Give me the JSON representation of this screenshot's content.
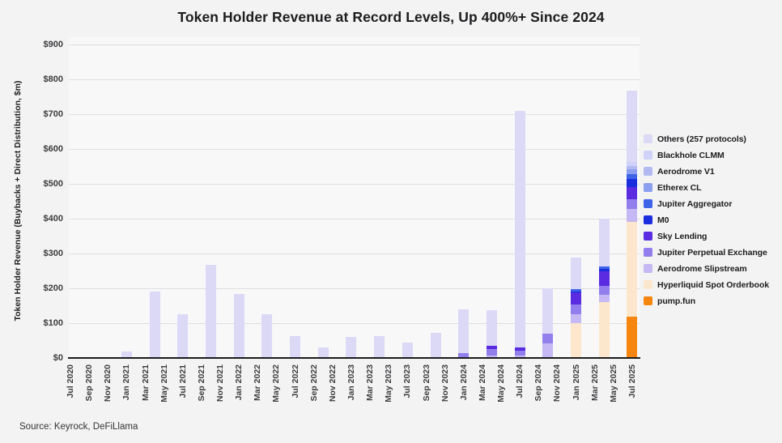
{
  "source_note": "Source: Keyrock, DeFiLlama",
  "chart_data": {
    "type": "bar",
    "stacked": true,
    "title": "Token Holder Revenue at Record Levels, Up 400%+ Since 2024",
    "xlabel": "",
    "ylabel": "Token Holder Revenue (Buybacks + Direct Distribution, $m)",
    "ylim": [
      0,
      900
    ],
    "grid": "horizontal",
    "legend_position": "right",
    "y_tick_labels": [
      "$0",
      "$100",
      "$200",
      "$300",
      "$400",
      "$500",
      "$600",
      "$700",
      "$800",
      "$900"
    ],
    "x_tick_labels": [
      "Jul 2020",
      "Sep 2020",
      "Nov 2020",
      "Jan 2021",
      "Mar 2021",
      "May 2021",
      "Jul 2021",
      "Sep 2021",
      "Nov 2021",
      "Jan 2022",
      "Mar 2022",
      "May 2022",
      "Jul 2022",
      "Sep 2022",
      "Nov 2022",
      "Jan 2023",
      "Mar 2023",
      "May 2023",
      "Jul 2023",
      "Sep 2023",
      "Nov 2023",
      "Jan 2024",
      "Mar 2024",
      "May 2024",
      "Jul 2024",
      "Sep 2024",
      "Nov 2024",
      "Jan 2025",
      "Mar 2025",
      "May 2025",
      "Jul 2025"
    ],
    "series_order_bottom_to_top": [
      "pump_fun",
      "hyperliquid",
      "slipstream",
      "jupiter_perp",
      "sky",
      "m0",
      "jupiter_agg",
      "etherex",
      "aerodrome_v1",
      "blackhole",
      "others"
    ],
    "legend_order_top_to_bottom": [
      "others",
      "blackhole",
      "aerodrome_v1",
      "etherex",
      "jupiter_agg",
      "m0",
      "sky",
      "jupiter_perp",
      "slipstream",
      "hyperliquid",
      "pump_fun"
    ],
    "series_meta": {
      "others": {
        "label": "Others (257 protocols)",
        "color": "#dbd9f6"
      },
      "blackhole": {
        "label": "Blackhole CLMM",
        "color": "#cfd2f9"
      },
      "aerodrome_v1": {
        "label": "Aerodrome V1",
        "color": "#b3baf3"
      },
      "etherex": {
        "label": "Etherex CL",
        "color": "#8c9fee"
      },
      "jupiter_agg": {
        "label": "Jupiter Aggregator",
        "color": "#3d64e7"
      },
      "m0": {
        "label": "M0",
        "color": "#1a2ede"
      },
      "sky": {
        "label": "Sky Lending",
        "color": "#5a2be0"
      },
      "jupiter_perp": {
        "label": "Jupiter Perpetual Exchange",
        "color": "#927eec"
      },
      "slipstream": {
        "label": "Aerodrome Slipstream",
        "color": "#c5b8f4"
      },
      "hyperliquid": {
        "label": "Hyperliquid Spot Orderbook",
        "color": "#fde7cc"
      },
      "pump_fun": {
        "label": "pump.fun",
        "color": "#f6860f"
      }
    },
    "bars": [
      {
        "label": "Jan 2021",
        "month": 6,
        "total": 18,
        "values": {
          "others": 18
        }
      },
      {
        "label": "Apr 2021",
        "month": 9,
        "total": 192,
        "values": {
          "others": 192
        }
      },
      {
        "label": "Jul 2021",
        "month": 12,
        "total": 126,
        "values": {
          "others": 126
        }
      },
      {
        "label": "Oct 2021",
        "month": 15,
        "total": 267,
        "values": {
          "others": 267
        }
      },
      {
        "label": "Jan 2022",
        "month": 18,
        "total": 185,
        "values": {
          "others": 185
        }
      },
      {
        "label": "Apr 2022",
        "month": 21,
        "total": 126,
        "values": {
          "others": 126
        }
      },
      {
        "label": "Jul 2022",
        "month": 24,
        "total": 64,
        "values": {
          "others": 64
        }
      },
      {
        "label": "Oct 2022",
        "month": 27,
        "total": 30,
        "values": {
          "others": 30
        }
      },
      {
        "label": "Jan 2023",
        "month": 30,
        "total": 60,
        "values": {
          "others": 60
        }
      },
      {
        "label": "Apr 2023",
        "month": 33,
        "total": 63,
        "values": {
          "others": 63
        }
      },
      {
        "label": "Jul 2023",
        "month": 36,
        "total": 45,
        "values": {
          "others": 45
        }
      },
      {
        "label": "Oct 2023",
        "month": 39,
        "total": 72,
        "values": {
          "others": 72
        }
      },
      {
        "label": "Jan 2024",
        "month": 42,
        "total": 141,
        "values": {
          "jupiter_perp": 15,
          "others": 126
        }
      },
      {
        "label": "Apr 2024",
        "month": 45,
        "total": 138,
        "values": {
          "slipstream": 8,
          "jupiter_perp": 18,
          "sky": 9,
          "others": 103
        }
      },
      {
        "label": "Jul 2024",
        "month": 48,
        "total": 710,
        "values": {
          "slipstream": 8,
          "jupiter_perp": 14,
          "sky": 8,
          "others": 680
        }
      },
      {
        "label": "Oct 2024",
        "month": 51,
        "total": 200,
        "values": {
          "slipstream": 42,
          "jupiter_perp": 28,
          "others": 130
        }
      },
      {
        "label": "Jan 2025",
        "month": 54,
        "total": 288,
        "values": {
          "hyperliquid": 100,
          "slipstream": 27,
          "jupiter_perp": 27,
          "sky": 34,
          "m0": 4,
          "jupiter_agg": 6,
          "others": 90
        }
      },
      {
        "label": "Apr 2025",
        "month": 57,
        "total": 400,
        "values": {
          "hyperliquid": 162,
          "slipstream": 20,
          "jupiter_perp": 26,
          "sky": 42,
          "m0": 6,
          "jupiter_agg": 8,
          "others": 136
        }
      },
      {
        "label": "Jul 2025",
        "month": 60,
        "total": 770,
        "values": {
          "pump_fun": 119,
          "hyperliquid": 272,
          "slipstream": 37,
          "jupiter_perp": 28,
          "sky": 35,
          "m0": 23,
          "jupiter_agg": 16,
          "etherex": 12,
          "aerodrome_v1": 11,
          "blackhole": 12,
          "others": 205
        }
      }
    ]
  }
}
